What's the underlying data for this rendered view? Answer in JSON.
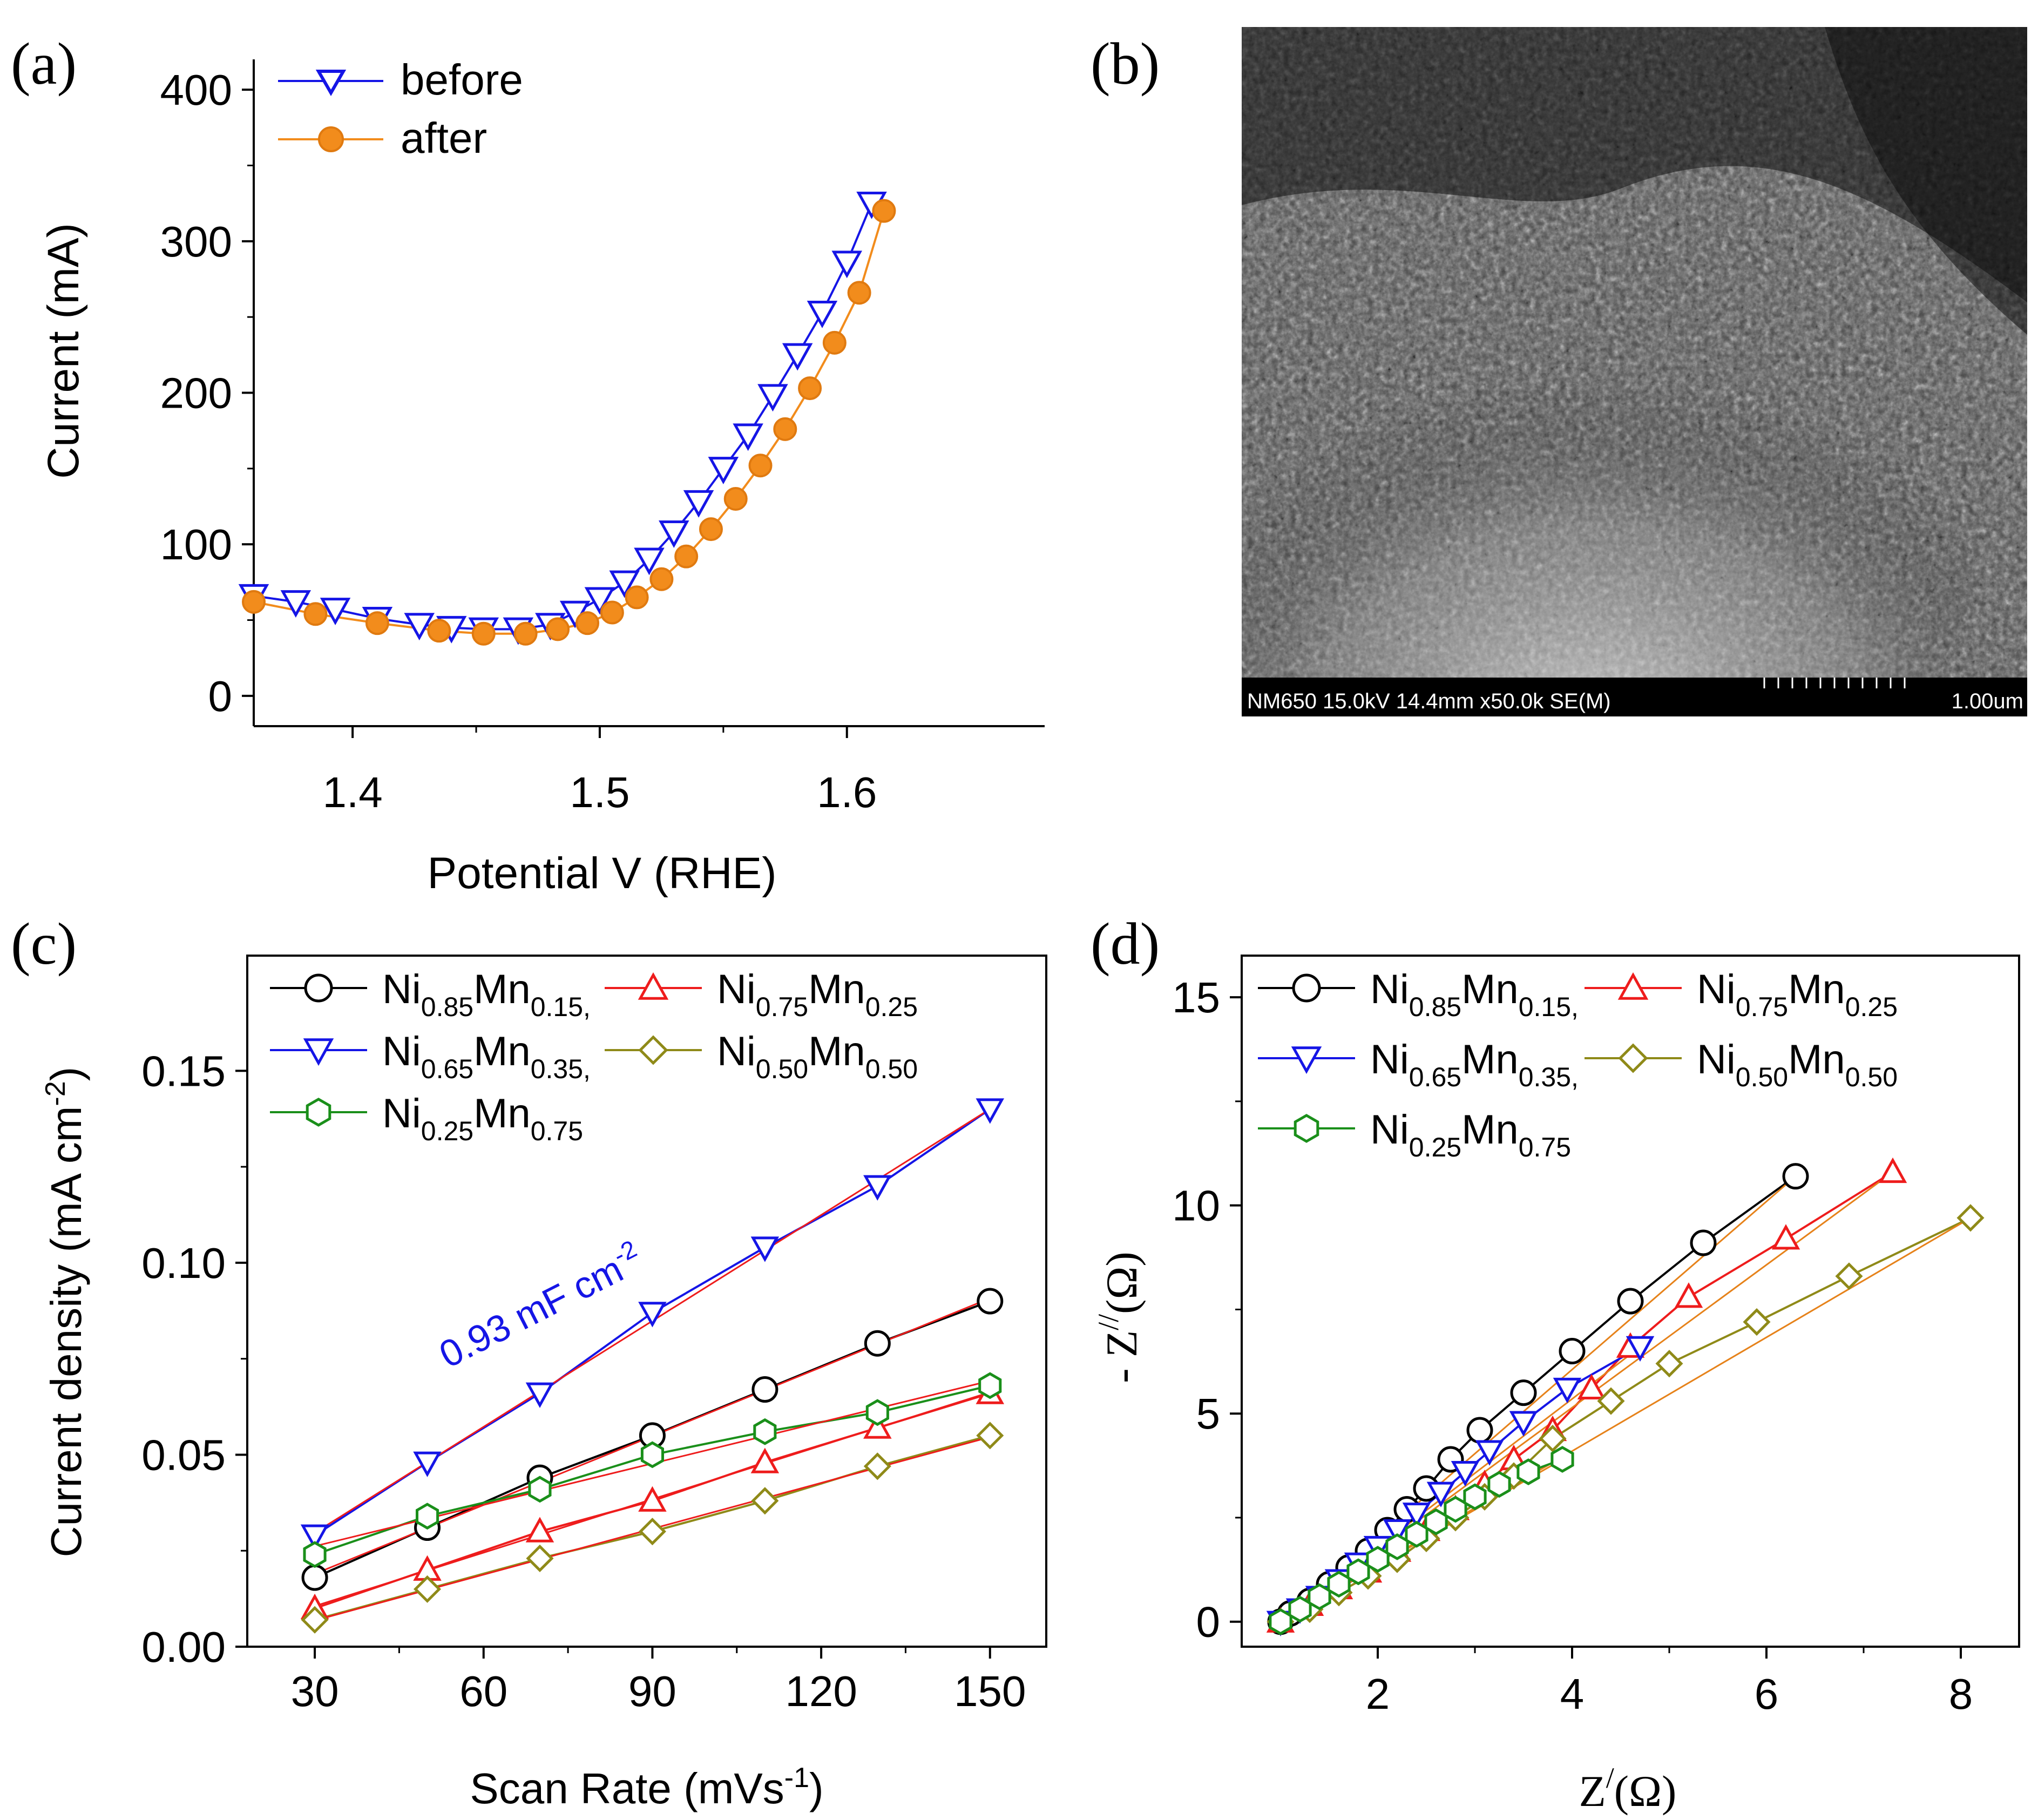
{
  "figure_panels": [
    "(a)",
    "(b)",
    "(c)",
    "(d)"
  ],
  "sem_caption": {
    "left": "NM650 15.0kV 14.4mm x50.0k SE(M)",
    "right": "1.00um"
  },
  "colors": {
    "before": "#1515e6",
    "after": "#f28c1c",
    "ni85": "#000000",
    "ni75": "#ee1c1c",
    "ni65": "#1515e6",
    "ni50": "#8f8a18",
    "ni25": "#1a8f1a",
    "fit": "#ee1c1c",
    "sem_bar": "#000000"
  },
  "chart_data": [
    {
      "panel": "(a)",
      "type": "scatter",
      "xlabel": "Potential V (RHE)",
      "ylabel": "Current (mA)",
      "xlim": [
        1.36,
        1.68
      ],
      "ylim": [
        -20,
        420
      ],
      "xticks": [
        "1.4",
        "1.5",
        "1.6"
      ],
      "xtick_values": [
        1.4,
        1.5,
        1.6
      ],
      "yticks": [
        "0",
        "100",
        "200",
        "300",
        "400"
      ],
      "ytick_values": [
        0,
        100,
        200,
        300,
        400
      ],
      "legend": [
        "before",
        "after"
      ],
      "series": [
        {
          "name": "before",
          "marker": "triangle-down",
          "x": [
            1.36,
            1.377,
            1.393,
            1.41,
            1.427,
            1.44,
            1.453,
            1.467,
            1.48,
            1.49,
            1.5,
            1.51,
            1.52,
            1.53,
            1.54,
            1.55,
            1.56,
            1.57,
            1.58,
            1.59,
            1.6,
            1.61
          ],
          "y": [
            66,
            62,
            57,
            51,
            47,
            45,
            44,
            44,
            47,
            55,
            64,
            75,
            90,
            108,
            128,
            150,
            172,
            198,
            225,
            253,
            286,
            325
          ]
        },
        {
          "name": "after",
          "marker": "circle",
          "x": [
            1.36,
            1.385,
            1.41,
            1.435,
            1.453,
            1.47,
            1.483,
            1.495,
            1.505,
            1.515,
            1.525,
            1.535,
            1.545,
            1.555,
            1.565,
            1.575,
            1.585,
            1.595,
            1.605,
            1.615
          ],
          "y": [
            62,
            54,
            48,
            43,
            41,
            41,
            44,
            48,
            55,
            65,
            77,
            92,
            110,
            130,
            152,
            176,
            203,
            233,
            266,
            320
          ]
        }
      ]
    },
    {
      "panel": "(c)",
      "type": "line",
      "xlabel": "Scan Rate (mVs⁻¹)",
      "ylabel": "Current density (mA cm⁻²)",
      "xlim": [
        18,
        160
      ],
      "ylim": [
        0.0,
        0.18
      ],
      "xticks": [
        "30",
        "60",
        "90",
        "120",
        "150"
      ],
      "xtick_values": [
        30,
        60,
        90,
        120,
        150
      ],
      "yticks": [
        "0.00",
        "0.05",
        "0.10",
        "0.15"
      ],
      "ytick_values": [
        0.0,
        0.05,
        0.1,
        0.15
      ],
      "annotation": "0.93 mF cm⁻²",
      "legend": [
        "Ni0.85Mn0.15,",
        "Ni0.75Mn0.25",
        "Ni0.65Mn0.35,",
        "Ni0.50Mn0.50",
        "Ni0.25Mn0.75"
      ],
      "x": [
        30,
        50,
        70,
        90,
        110,
        130,
        150
      ],
      "series": [
        {
          "name": "Ni0.85Mn0.15,",
          "marker": "circle",
          "values": [
            0.018,
            0.031,
            0.044,
            0.055,
            0.067,
            0.079,
            0.09
          ]
        },
        {
          "name": "Ni0.75Mn0.25",
          "marker": "triangle-up",
          "values": [
            0.01,
            0.02,
            0.03,
            0.038,
            0.048,
            0.057,
            0.066
          ]
        },
        {
          "name": "Ni0.65Mn0.35,",
          "marker": "triangle-down",
          "values": [
            0.029,
            0.048,
            0.066,
            0.087,
            0.104,
            0.12,
            0.14
          ]
        },
        {
          "name": "Ni0.50Mn0.50",
          "marker": "diamond",
          "values": [
            0.007,
            0.015,
            0.023,
            0.03,
            0.038,
            0.047,
            0.055
          ]
        },
        {
          "name": "Ni0.25Mn0.75",
          "marker": "hexagon",
          "values": [
            0.024,
            0.034,
            0.041,
            0.05,
            0.056,
            0.061,
            0.068
          ]
        }
      ]
    },
    {
      "panel": "(d)",
      "type": "scatter",
      "xlabel": "Z′(Ω)",
      "ylabel": "- Z″(Ω)",
      "xlim": [
        0.6,
        8.6
      ],
      "ylim": [
        -0.6,
        16.0
      ],
      "xticks": [
        "2",
        "4",
        "6",
        "8"
      ],
      "xtick_values": [
        2,
        4,
        6,
        8
      ],
      "yticks": [
        "0",
        "5",
        "10",
        "15"
      ],
      "ytick_values": [
        0,
        5,
        10,
        15
      ],
      "legend": [
        "Ni0.85Mn0.15,",
        "Ni0.75Mn0.25",
        "Ni0.65Mn0.35,",
        "Ni0.50Mn0.50",
        "Ni0.25Mn0.75"
      ],
      "series": [
        {
          "name": "Ni0.85Mn0.15,",
          "marker": "circle",
          "x": [
            1.0,
            1.1,
            1.3,
            1.5,
            1.7,
            1.9,
            2.1,
            2.3,
            2.5,
            2.75,
            3.05,
            3.5,
            4.0,
            4.6,
            5.35,
            6.3
          ],
          "y": [
            0.0,
            0.2,
            0.5,
            0.9,
            1.3,
            1.7,
            2.2,
            2.7,
            3.2,
            3.9,
            4.6,
            5.5,
            6.5,
            7.7,
            9.1,
            10.7
          ]
        },
        {
          "name": "Ni0.75Mn0.25",
          "marker": "triangle-up",
          "x": [
            1.0,
            1.3,
            1.6,
            1.9,
            2.2,
            2.5,
            2.8,
            3.1,
            3.4,
            3.8,
            4.2,
            4.6,
            5.2,
            6.2,
            7.3
          ],
          "y": [
            0.0,
            0.4,
            0.8,
            1.2,
            1.7,
            2.2,
            2.7,
            3.3,
            3.9,
            4.6,
            5.6,
            6.6,
            7.8,
            9.2,
            10.8
          ]
        },
        {
          "name": "Ni0.65Mn0.35,",
          "marker": "triangle-down",
          "x": [
            1.0,
            1.2,
            1.4,
            1.6,
            1.8,
            2.0,
            2.2,
            2.4,
            2.65,
            2.9,
            3.15,
            3.5,
            3.95,
            4.7
          ],
          "y": [
            0.0,
            0.3,
            0.6,
            1.0,
            1.4,
            1.8,
            2.2,
            2.6,
            3.1,
            3.6,
            4.1,
            4.8,
            5.6,
            6.6
          ]
        },
        {
          "name": "Ni0.50Mn0.50",
          "marker": "diamond",
          "x": [
            1.0,
            1.3,
            1.6,
            1.9,
            2.2,
            2.5,
            2.8,
            3.1,
            3.4,
            3.8,
            4.4,
            5.0,
            5.9,
            6.85,
            8.1
          ],
          "y": [
            0.0,
            0.3,
            0.7,
            1.1,
            1.5,
            2.0,
            2.5,
            3.0,
            3.5,
            4.4,
            5.3,
            6.2,
            7.2,
            8.3,
            9.7
          ]
        },
        {
          "name": "Ni0.25Mn0.75",
          "marker": "hexagon",
          "x": [
            1.0,
            1.2,
            1.4,
            1.6,
            1.8,
            2.0,
            2.2,
            2.4,
            2.6,
            2.8,
            3.0,
            3.25,
            3.55,
            3.9
          ],
          "y": [
            0.0,
            0.3,
            0.6,
            0.9,
            1.2,
            1.5,
            1.8,
            2.1,
            2.4,
            2.7,
            3.0,
            3.3,
            3.6,
            3.9
          ]
        }
      ]
    }
  ]
}
